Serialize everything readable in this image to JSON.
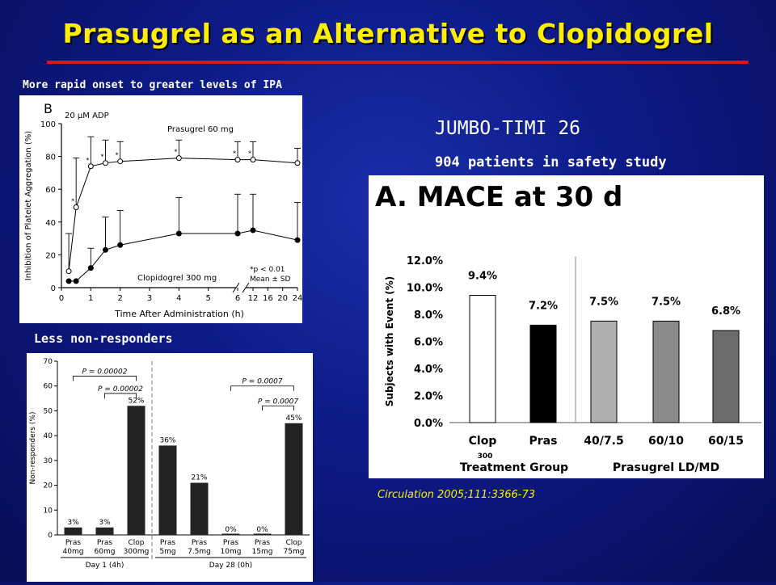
{
  "slide": {
    "title": "Prasugrel as an Alternative to Clopidogrel",
    "caption_ipa": "More rapid onset to greater levels of IPA",
    "caption_nonresp": "Less non-responders",
    "trial_name": "JUMBO-TIMI 26",
    "trial_patients": "904 patients in safety study",
    "citation": "Circulation 2005;111:3366-73",
    "tag_300": "300",
    "colors": {
      "background": "#0d1a86",
      "title": "#ffee00",
      "rule": "#e0141e",
      "text": "#ffffff"
    }
  },
  "chart_data": [
    {
      "type": "line",
      "panel_letter": "B",
      "annotation": "20 µM ADP",
      "title": "",
      "xlabel": "Time After Administration (h)",
      "ylabel": "Inhibition of Platelet Aggregation (%)",
      "ylim": [
        0,
        100
      ],
      "yticks": [
        "0",
        "20",
        "40",
        "60",
        "80",
        "100"
      ],
      "xticks": [
        "0",
        "1",
        "2",
        "3",
        "4",
        "5",
        "6",
        "12",
        "16",
        "20",
        "24"
      ],
      "x_scale": "broken axis between 6 and 12 h",
      "series": [
        {
          "name": "Prasugrel 60 mg",
          "marker": "open-circle",
          "x": [
            0.25,
            0.5,
            1,
            1.5,
            2,
            4,
            6,
            12,
            24
          ],
          "y": [
            10,
            49,
            74,
            76,
            77,
            79,
            78,
            78,
            76
          ],
          "err": [
            23,
            30,
            18,
            14,
            12,
            11,
            11,
            11,
            9
          ]
        },
        {
          "name": "Clopidogrel 300 mg",
          "marker": "filled-circle",
          "x": [
            0.25,
            0.5,
            1,
            1.5,
            2,
            4,
            6,
            12,
            24
          ],
          "y": [
            4,
            4,
            12,
            23,
            26,
            33,
            33,
            35,
            29
          ],
          "err": [
            0,
            0,
            12,
            20,
            21,
            22,
            24,
            22,
            23
          ]
        }
      ],
      "legend_note": [
        "*p < 0.01",
        "Mean ± SD"
      ],
      "significance_marks": [
        "*",
        "*",
        "*",
        "*",
        "*",
        "*",
        "*"
      ]
    },
    {
      "type": "bar",
      "title": "",
      "xlabel": "",
      "ylabel": "Non-responders (%)",
      "ylim": [
        0,
        70
      ],
      "yticks": [
        "0",
        "10",
        "20",
        "30",
        "40",
        "50",
        "60",
        "70"
      ],
      "categories": [
        [
          "Pras",
          "40mg"
        ],
        [
          "Pras",
          "60mg"
        ],
        [
          "Clop",
          "300mg"
        ],
        [
          "Pras",
          "5mg"
        ],
        [
          "Pras",
          "7.5mg"
        ],
        [
          "Pras",
          "10mg"
        ],
        [
          "Pras",
          "15mg"
        ],
        [
          "Clop",
          "75mg"
        ]
      ],
      "values": [
        3,
        3,
        52,
        36,
        21,
        0,
        0,
        45
      ],
      "value_labels": [
        "3%",
        "3%",
        "52%",
        "36%",
        "21%",
        "0%",
        "0%",
        "45%"
      ],
      "groups": [
        "Day 1 (4h)",
        "Day 28 (0h)"
      ],
      "p_values": [
        "P = 0.00002",
        "P = 0.00002",
        "P = 0.0007",
        "P = 0.0007"
      ]
    },
    {
      "type": "bar",
      "title": "A. MACE at 30 d",
      "xlabel": "Treatment Group",
      "xlabel2": "Prasugrel LD/MD",
      "ylabel": "Subjects with Event (%)",
      "ylim": [
        0,
        12
      ],
      "yticks": [
        "0.0%",
        "2.0%",
        "4.0%",
        "6.0%",
        "8.0%",
        "10.0%",
        "12.0%"
      ],
      "categories": [
        "Clop",
        "Pras",
        "40/7.5",
        "60/10",
        "60/15"
      ],
      "values": [
        9.4,
        7.2,
        7.5,
        7.5,
        6.8
      ],
      "value_labels": [
        "9.4%",
        "7.2%",
        "7.5%",
        "7.5%",
        "6.8%"
      ],
      "bar_colors": [
        "#ffffff",
        "#000000",
        "#b0b0b0",
        "#8a8a8a",
        "#6c6c6c"
      ]
    }
  ]
}
